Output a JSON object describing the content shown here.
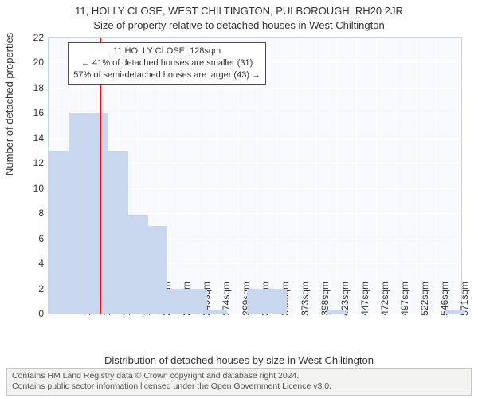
{
  "chart": {
    "type": "bar",
    "title_main": "11, HOLLY CLOSE, WEST CHILTINGTON, PULBOROUGH, RH20 2JR",
    "title_sub": "Size of property relative to detached houses in West Chiltington",
    "title_fontsize": 13,
    "y_axis_title": "Number of detached properties",
    "x_axis_title": "Distribution of detached houses by size in West Chiltington",
    "axis_title_fontsize": 13,
    "tick_fontsize": 12,
    "background_color": "#f7f9fc",
    "grid_color": "#ffffff",
    "border_color": "#cdd5df",
    "bar_color": "#c9d7ee",
    "marker_color": "#ff0000",
    "ylim": [
      0,
      22
    ],
    "yticks": [
      0,
      2,
      4,
      6,
      8,
      10,
      12,
      14,
      16,
      18,
      20,
      22
    ],
    "x_min": 63.5,
    "x_max": 583.5,
    "x_step": 25,
    "x_tick_labels": [
      "76sqm",
      "101sqm",
      "126sqm",
      "151sqm",
      "175sqm",
      "200sqm",
      "225sqm",
      "249sqm",
      "274sqm",
      "299sqm",
      "324sqm",
      "348sqm",
      "373sqm",
      "398sqm",
      "423sqm",
      "447sqm",
      "472sqm",
      "497sqm",
      "522sqm",
      "546sqm",
      "571sqm"
    ],
    "bars": [
      {
        "i": 0,
        "value": 13
      },
      {
        "i": 1,
        "value": 16
      },
      {
        "i": 2,
        "value": 16
      },
      {
        "i": 3,
        "value": 13
      },
      {
        "i": 4,
        "value": 7.8
      },
      {
        "i": 5,
        "value": 7
      },
      {
        "i": 6,
        "value": 2
      },
      {
        "i": 7,
        "value": 2
      },
      {
        "i": 8,
        "value": 0.3
      },
      {
        "i": 9,
        "value": 0
      },
      {
        "i": 10,
        "value": 2
      },
      {
        "i": 11,
        "value": 2
      },
      {
        "i": 12,
        "value": 0
      },
      {
        "i": 13,
        "value": 0
      },
      {
        "i": 14,
        "value": 0.3
      },
      {
        "i": 15,
        "value": 0
      },
      {
        "i": 16,
        "value": 0
      },
      {
        "i": 17,
        "value": 0
      },
      {
        "i": 18,
        "value": 0
      },
      {
        "i": 19,
        "value": 0
      },
      {
        "i": 20,
        "value": 0.3
      }
    ],
    "marker_x": 128,
    "annotation": {
      "line1": "11 HOLLY CLOSE: 128sqm",
      "line2": "← 41% of detached houses are smaller (31)",
      "line3": "57% of semi-detached houses are larger (43) →",
      "border_color": "#ff0000",
      "fontsize": 11
    }
  },
  "footer": {
    "line1": "Contains HM Land Registry data © Crown copyright and database right 2024.",
    "line2": "Contains public sector information licensed under the Open Government Licence v3.0.",
    "background_color": "#f3f3f1",
    "border_color": "#c8c8c8",
    "fontsize": 10.5
  }
}
